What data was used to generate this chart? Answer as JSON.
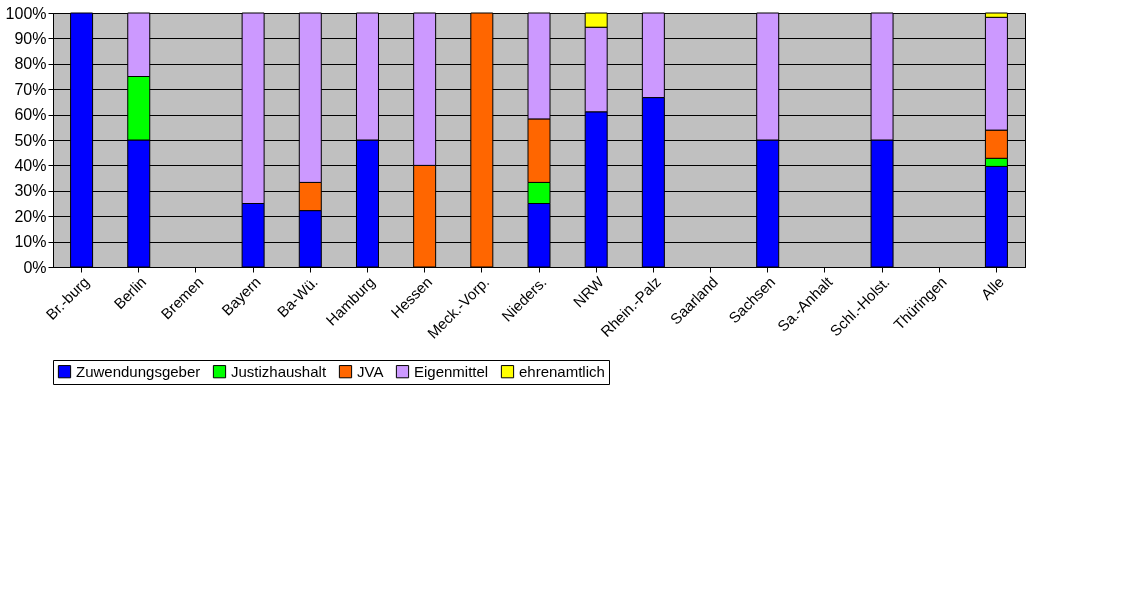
{
  "chart_data": {
    "type": "bar",
    "stacked": true,
    "categories": [
      "Br.-burg",
      "Berlin",
      "Bremen",
      "Bayern",
      "Ba-Wü.",
      "Hamburg",
      "Hessen",
      "Meck.-Vorp.",
      "Nieders.",
      "NRW",
      "Rhein.-Palz",
      "Saarland",
      "Sachsen",
      "Sa.-Anhalt",
      "Schl.-Holst.",
      "Thüringen",
      "Alle"
    ],
    "series": [
      {
        "name": "Zuwendungsgeber",
        "color": "#0000ff",
        "values": [
          100,
          50,
          null,
          25,
          22.2,
          50,
          null,
          null,
          25,
          61.1,
          66.7,
          null,
          50,
          null,
          50,
          null,
          39.6
        ]
      },
      {
        "name": "Justizhaushalt",
        "color": "#00ff00",
        "values": [
          null,
          25,
          null,
          null,
          null,
          null,
          null,
          null,
          8.3,
          null,
          null,
          null,
          null,
          null,
          null,
          null,
          3.2
        ]
      },
      {
        "name": "JVA",
        "color": "#ff6600",
        "values": [
          null,
          null,
          null,
          null,
          11.1,
          null,
          40,
          100,
          25,
          null,
          null,
          null,
          null,
          null,
          null,
          null,
          11.1
        ]
      },
      {
        "name": "Eigenmittel",
        "color": "#cc99ff",
        "values": [
          null,
          25,
          null,
          75,
          66.7,
          50,
          60,
          null,
          41.7,
          33.3,
          33.3,
          null,
          50,
          null,
          50,
          null,
          44.4
        ]
      },
      {
        "name": "ehrenamtlich",
        "color": "#ffff00",
        "values": [
          null,
          null,
          null,
          null,
          null,
          null,
          null,
          null,
          null,
          5.6,
          null,
          null,
          null,
          null,
          null,
          null,
          1.7
        ]
      }
    ],
    "ylim": [
      0,
      100
    ],
    "yticks": [
      {
        "value": 0,
        "label": "0%"
      },
      {
        "value": 10,
        "label": "10%"
      },
      {
        "value": 20,
        "label": "20%"
      },
      {
        "value": 30,
        "label": "30%"
      },
      {
        "value": 40,
        "label": "40%"
      },
      {
        "value": 50,
        "label": "50%"
      },
      {
        "value": 60,
        "label": "60%"
      },
      {
        "value": 70,
        "label": "70%"
      },
      {
        "value": 80,
        "label": "80%"
      },
      {
        "value": 90,
        "label": "90%"
      },
      {
        "value": 100,
        "label": "100%"
      }
    ],
    "grid": "y",
    "legend": "bottom"
  }
}
